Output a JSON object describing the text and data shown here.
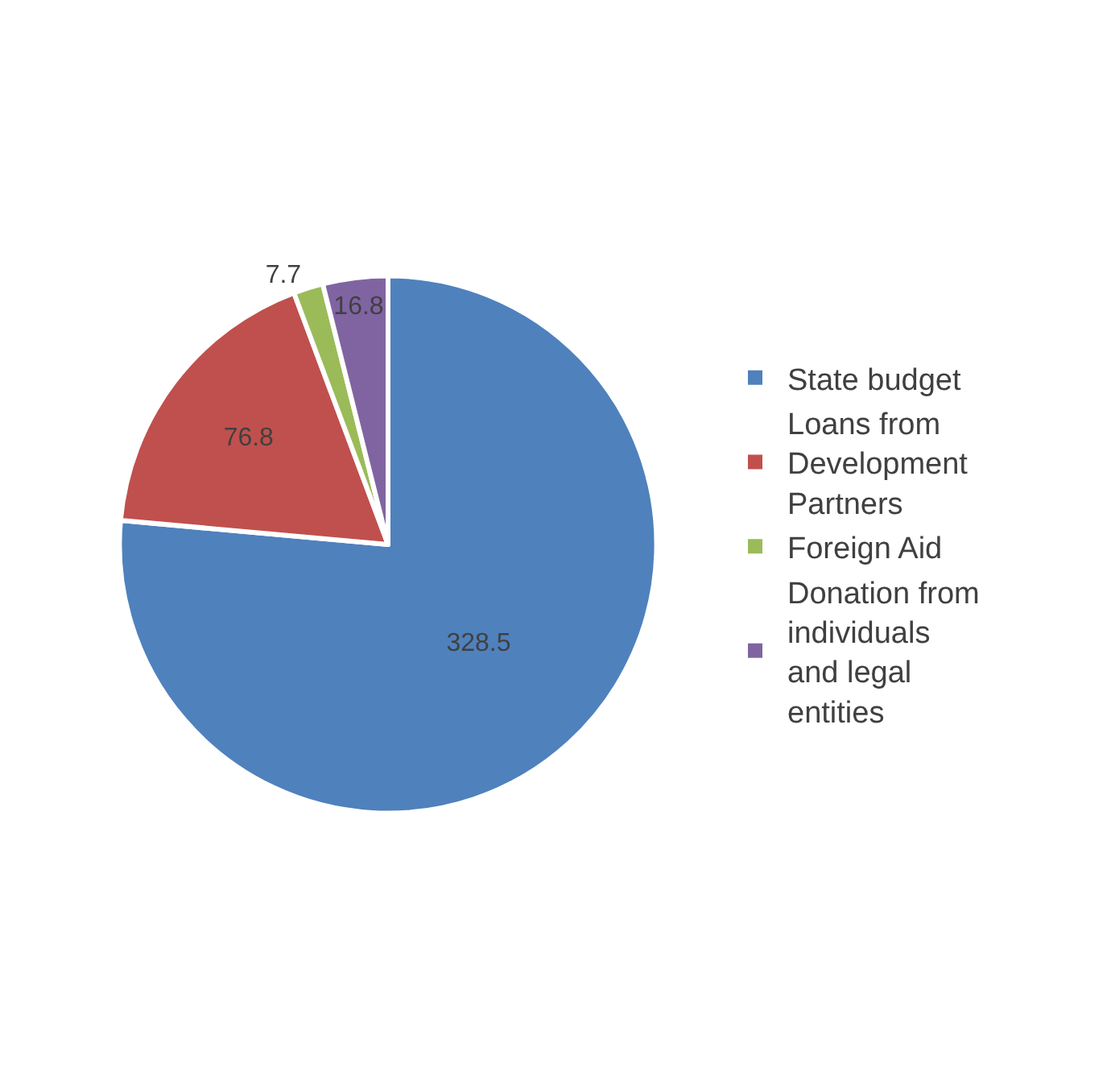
{
  "chart_data": {
    "type": "pie",
    "categories": [
      "State budget",
      "Loans from Development Partners",
      "Foreign Aid",
      "Donation from individuals and legal entities"
    ],
    "values": [
      328.5,
      76.8,
      7.7,
      16.8
    ],
    "colors": [
      "#4f81bd",
      "#c0504d",
      "#9bbb59",
      "#8064a2"
    ],
    "data_labels": true,
    "legend": "right"
  }
}
